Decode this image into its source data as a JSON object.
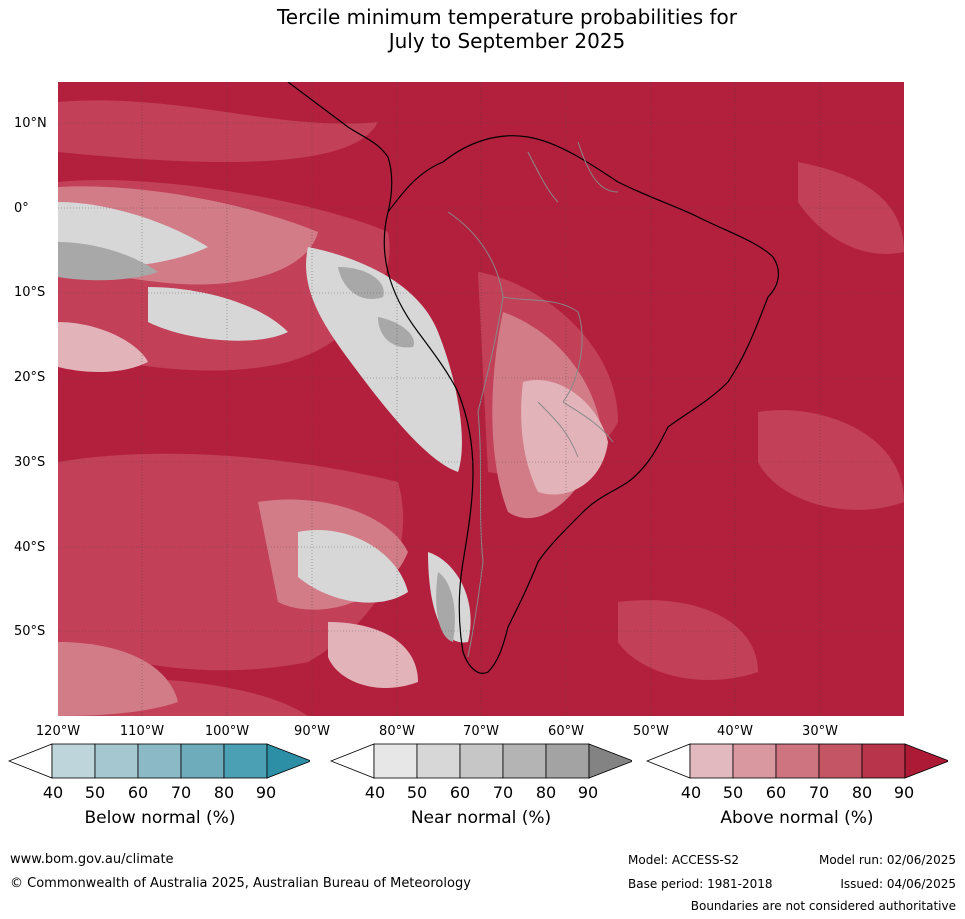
{
  "title_line1": "Tercile minimum temperature probabilities for",
  "title_line2": "July to September 2025",
  "lat_labels": [
    "10°N",
    "0°",
    "10°S",
    "20°S",
    "30°S",
    "40°S",
    "50°S"
  ],
  "lon_labels": [
    "120°W",
    "110°W",
    "100°W",
    "90°W",
    "80°W",
    "70°W",
    "60°W",
    "50°W",
    "40°W",
    "30°W"
  ],
  "colorbars": [
    {
      "name": "Below normal (%)",
      "ticks": [
        "40",
        "50",
        "60",
        "70",
        "80",
        "90"
      ],
      "colors": [
        "#ffffff",
        "#bed5dc",
        "#a5c7cf",
        "#8bbac6",
        "#6eabbb",
        "#4ba1b3",
        "#2d8fa6"
      ]
    },
    {
      "name": "Near normal (%)",
      "ticks": [
        "40",
        "50",
        "60",
        "70",
        "80",
        "90"
      ],
      "colors": [
        "#ffffff",
        "#e7e7e7",
        "#d7d7d7",
        "#c6c6c6",
        "#b4b4b4",
        "#a3a3a3",
        "#838383"
      ]
    },
    {
      "name": "Above normal (%)",
      "ticks": [
        "40",
        "50",
        "60",
        "70",
        "80",
        "90"
      ],
      "colors": [
        "#ffffff",
        "#e2b9be",
        "#d9979f",
        "#cd7480",
        "#c35565",
        "#b7344a",
        "#ac1a36"
      ]
    }
  ],
  "footer": {
    "website": "www.bom.gov.au/climate",
    "copyright": "© Commonwealth of Australia 2025, Australian Bureau of Meteorology",
    "model": "Model: ACCESS-S2",
    "model_run": "Model run: 02/06/2025",
    "base_period": "Base period: 1981-2018",
    "issued": "Issued: 04/06/2025",
    "disclaimer": "Boundaries are not considered authoritative"
  }
}
